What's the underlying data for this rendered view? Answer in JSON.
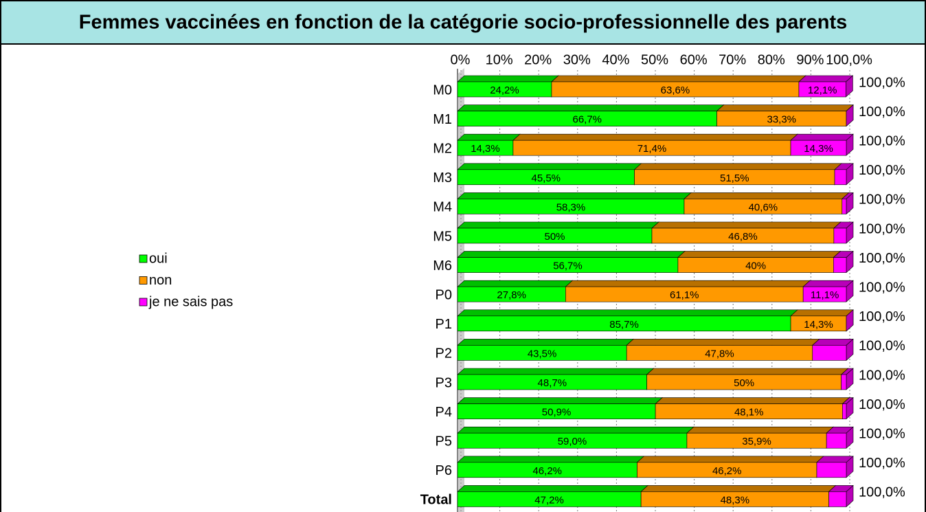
{
  "chart_data": {
    "type": "stacked-bar-3d",
    "title": "Femmes vaccinées en fonction de la catégorie socio-professionnelle des parents",
    "categories": [
      "M0",
      "M1",
      "M2",
      "M3",
      "M4",
      "M5",
      "M6",
      "P0",
      "P1",
      "P2",
      "P3",
      "P4",
      "P5",
      "P6",
      "Total"
    ],
    "series": [
      {
        "name": "oui",
        "color": "#00ff00",
        "top_color": "#00c000",
        "values": [
          24.2,
          66.7,
          14.3,
          45.5,
          58.3,
          50,
          56.7,
          27.8,
          85.7,
          43.5,
          48.7,
          50.9,
          59.0,
          46.2,
          47.2
        ],
        "value_labels": [
          "24,2%",
          "66,7%",
          "14,3%",
          "45,5%",
          "58,3%",
          "50%",
          "56,7%",
          "27,8%",
          "85,7%",
          "43,5%",
          "48,7%",
          "50,9%",
          "59,0%",
          "46,2%",
          "47,2%"
        ]
      },
      {
        "name": "non",
        "color": "#ff9900",
        "top_color": "#b87000",
        "values": [
          63.6,
          33.3,
          71.4,
          51.5,
          40.6,
          46.8,
          40,
          61.1,
          14.3,
          47.8,
          50,
          48.1,
          35.9,
          46.2,
          48.3
        ],
        "value_labels": [
          "63,6%",
          "33,3%",
          "71,4%",
          "51,5%",
          "40,6%",
          "46,8%",
          "40%",
          "61,1%",
          "14,3%",
          "47,8%",
          "50%",
          "48,1%",
          "35,9%",
          "46,2%",
          "48,3%"
        ]
      },
      {
        "name": "je ne sais pas",
        "color": "#ff00ff",
        "top_color": "#b800b8",
        "values": [
          12.1,
          0,
          14.3,
          3.0,
          1.1,
          3.2,
          3.3,
          11.1,
          0,
          8.7,
          1.3,
          1.0,
          5.1,
          7.6,
          4.5
        ],
        "value_labels": [
          "12,1%",
          null,
          "14,3%",
          null,
          null,
          null,
          null,
          "11,1%",
          null,
          null,
          null,
          null,
          null,
          null,
          null
        ]
      }
    ],
    "totals": [
      100,
      100,
      100,
      100,
      100,
      100,
      100,
      100,
      100,
      100,
      100,
      100,
      100,
      100,
      100
    ],
    "total_labels": [
      "100,0%",
      "100,0%",
      "100,0%",
      "100,0%",
      "100,0%",
      "100,0%",
      "100,0%",
      "100,0%",
      "100,0%",
      "100,0%",
      "100,0%",
      "100,0%",
      "100,0%",
      "100,0%",
      "100,0%"
    ],
    "xlim": [
      0,
      100
    ],
    "xticks": [
      {
        "value": 0,
        "label": "0%"
      },
      {
        "value": 10,
        "label": "10%"
      },
      {
        "value": 20,
        "label": "20%"
      },
      {
        "value": 30,
        "label": "30%"
      },
      {
        "value": 40,
        "label": "40%"
      },
      {
        "value": 50,
        "label": "50%"
      },
      {
        "value": 60,
        "label": "60%"
      },
      {
        "value": 70,
        "label": "70%"
      },
      {
        "value": 80,
        "label": "80%"
      },
      {
        "value": 90,
        "label": "90%"
      },
      {
        "value": 100,
        "label": "100,0%"
      }
    ],
    "grid": true,
    "legend": "left"
  }
}
